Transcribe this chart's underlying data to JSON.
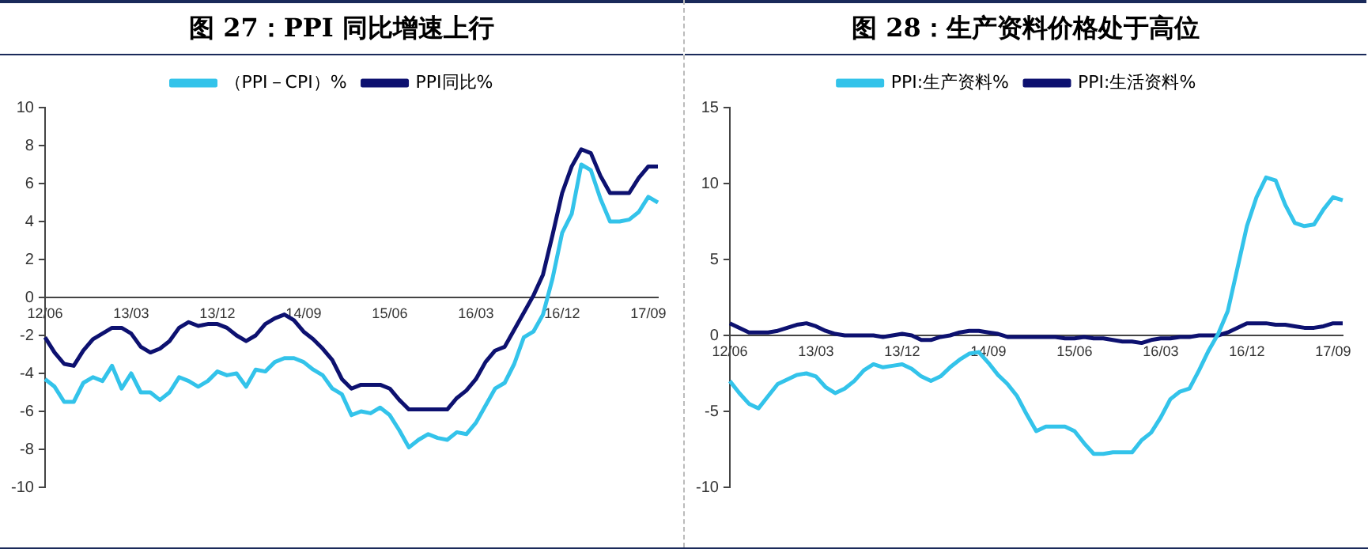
{
  "chart_data": [
    {
      "type": "line",
      "title": "图 27：PPI 同比增速上行",
      "legend": "top",
      "grid": false,
      "ylim": [
        -10,
        10
      ],
      "yticks": [
        -10,
        -8,
        -6,
        -4,
        -2,
        0,
        2,
        4,
        6,
        8,
        10
      ],
      "categories": [
        "12/06",
        null,
        null,
        null,
        null,
        null,
        null,
        null,
        null,
        "13/03",
        null,
        null,
        null,
        null,
        null,
        null,
        null,
        null,
        "13/12",
        null,
        null,
        null,
        null,
        null,
        null,
        null,
        null,
        "14/09",
        null,
        null,
        null,
        null,
        null,
        null,
        null,
        null,
        "15/06",
        null,
        null,
        null,
        null,
        null,
        null,
        null,
        null,
        "16/03",
        null,
        null,
        null,
        null,
        null,
        null,
        null,
        null,
        "16/12",
        null,
        null,
        null,
        null,
        null,
        null,
        null,
        null,
        "17/09",
        null
      ],
      "series": [
        {
          "name": "（PPI－CPI）%",
          "color": "#33c3ea",
          "values": [
            -4.3,
            -4.7,
            -5.5,
            -5.5,
            -4.5,
            -4.2,
            -4.4,
            -3.6,
            -4.8,
            -4.0,
            -5.0,
            -5.0,
            -5.4,
            -5.0,
            -4.2,
            -4.4,
            -4.7,
            -4.4,
            -3.9,
            -4.1,
            -4.0,
            -4.7,
            -3.8,
            -3.9,
            -3.4,
            -3.2,
            -3.2,
            -3.4,
            -3.8,
            -4.1,
            -4.8,
            -5.1,
            -6.2,
            -6.0,
            -6.1,
            -5.8,
            -6.2,
            -7.0,
            -7.9,
            -7.5,
            -7.2,
            -7.4,
            -7.5,
            -7.1,
            -7.2,
            -6.6,
            -5.7,
            -4.8,
            -4.5,
            -3.5,
            -2.1,
            -1.8,
            -0.9,
            1.0,
            3.4,
            4.4,
            7.0,
            6.7,
            5.2,
            4.0,
            4.0,
            4.1,
            4.5,
            5.3,
            5.0
          ]
        },
        {
          "name": "PPI同比%",
          "color": "#0d1170",
          "values": [
            -2.1,
            -2.9,
            -3.5,
            -3.6,
            -2.8,
            -2.2,
            -1.9,
            -1.6,
            -1.6,
            -1.9,
            -2.6,
            -2.9,
            -2.7,
            -2.3,
            -1.6,
            -1.3,
            -1.5,
            -1.4,
            -1.4,
            -1.6,
            -2.0,
            -2.3,
            -2.0,
            -1.4,
            -1.1,
            -0.9,
            -1.2,
            -1.8,
            -2.2,
            -2.7,
            -3.3,
            -4.3,
            -4.8,
            -4.6,
            -4.6,
            -4.6,
            -4.8,
            -5.4,
            -5.9,
            -5.9,
            -5.9,
            -5.9,
            -5.9,
            -5.3,
            -4.9,
            -4.3,
            -3.4,
            -2.8,
            -2.6,
            -1.7,
            -0.8,
            0.1,
            1.2,
            3.3,
            5.5,
            6.9,
            7.8,
            7.6,
            6.4,
            5.5,
            5.5,
            5.5,
            6.3,
            6.9,
            6.9
          ]
        }
      ]
    },
    {
      "type": "line",
      "title": "图 28：生产资料价格处于高位",
      "legend": "top",
      "grid": false,
      "ylim": [
        -10,
        15
      ],
      "yticks": [
        -10,
        -5,
        0,
        5,
        10,
        15
      ],
      "categories": [
        "12/06",
        null,
        null,
        null,
        null,
        null,
        null,
        null,
        null,
        "13/03",
        null,
        null,
        null,
        null,
        null,
        null,
        null,
        null,
        "13/12",
        null,
        null,
        null,
        null,
        null,
        null,
        null,
        null,
        "14/09",
        null,
        null,
        null,
        null,
        null,
        null,
        null,
        null,
        "15/06",
        null,
        null,
        null,
        null,
        null,
        null,
        null,
        null,
        "16/03",
        null,
        null,
        null,
        null,
        null,
        null,
        null,
        null,
        "16/12",
        null,
        null,
        null,
        null,
        null,
        null,
        null,
        null,
        "17/09",
        null
      ],
      "series": [
        {
          "name": "PPI:生产资料%",
          "color": "#33c3ea",
          "values": [
            -3.0,
            -3.8,
            -4.5,
            -4.8,
            -4.0,
            -3.2,
            -2.9,
            -2.6,
            -2.5,
            -2.7,
            -3.4,
            -3.8,
            -3.5,
            -3.0,
            -2.3,
            -1.9,
            -2.1,
            -2.0,
            -1.9,
            -2.2,
            -2.7,
            -3.0,
            -2.7,
            -2.1,
            -1.6,
            -1.2,
            -1.1,
            -1.8,
            -2.6,
            -3.2,
            -4.0,
            -5.2,
            -6.3,
            -6.0,
            -6.0,
            -6.0,
            -6.3,
            -7.1,
            -7.8,
            -7.8,
            -7.7,
            -7.7,
            -7.7,
            -6.9,
            -6.4,
            -5.4,
            -4.2,
            -3.7,
            -3.5,
            -2.3,
            -1.0,
            0.1,
            1.6,
            4.4,
            7.2,
            9.1,
            10.4,
            10.2,
            8.6,
            7.4,
            7.2,
            7.3,
            8.3,
            9.1,
            8.9
          ]
        },
        {
          "name": "PPI:生活资料%",
          "color": "#0d1170",
          "values": [
            0.8,
            0.5,
            0.2,
            0.2,
            0.2,
            0.3,
            0.5,
            0.7,
            0.8,
            0.6,
            0.3,
            0.1,
            0.0,
            0.0,
            0.0,
            0.0,
            -0.1,
            0.0,
            0.1,
            0.0,
            -0.3,
            -0.3,
            -0.1,
            0.0,
            0.2,
            0.3,
            0.3,
            0.2,
            0.1,
            -0.1,
            -0.1,
            -0.1,
            -0.1,
            -0.1,
            -0.1,
            -0.2,
            -0.2,
            -0.1,
            -0.2,
            -0.2,
            -0.3,
            -0.4,
            -0.4,
            -0.5,
            -0.3,
            -0.2,
            -0.2,
            -0.1,
            -0.1,
            0.0,
            0.0,
            0.0,
            0.2,
            0.5,
            0.8,
            0.8,
            0.8,
            0.7,
            0.7,
            0.6,
            0.5,
            0.5,
            0.6,
            0.8,
            0.8
          ]
        }
      ]
    }
  ]
}
